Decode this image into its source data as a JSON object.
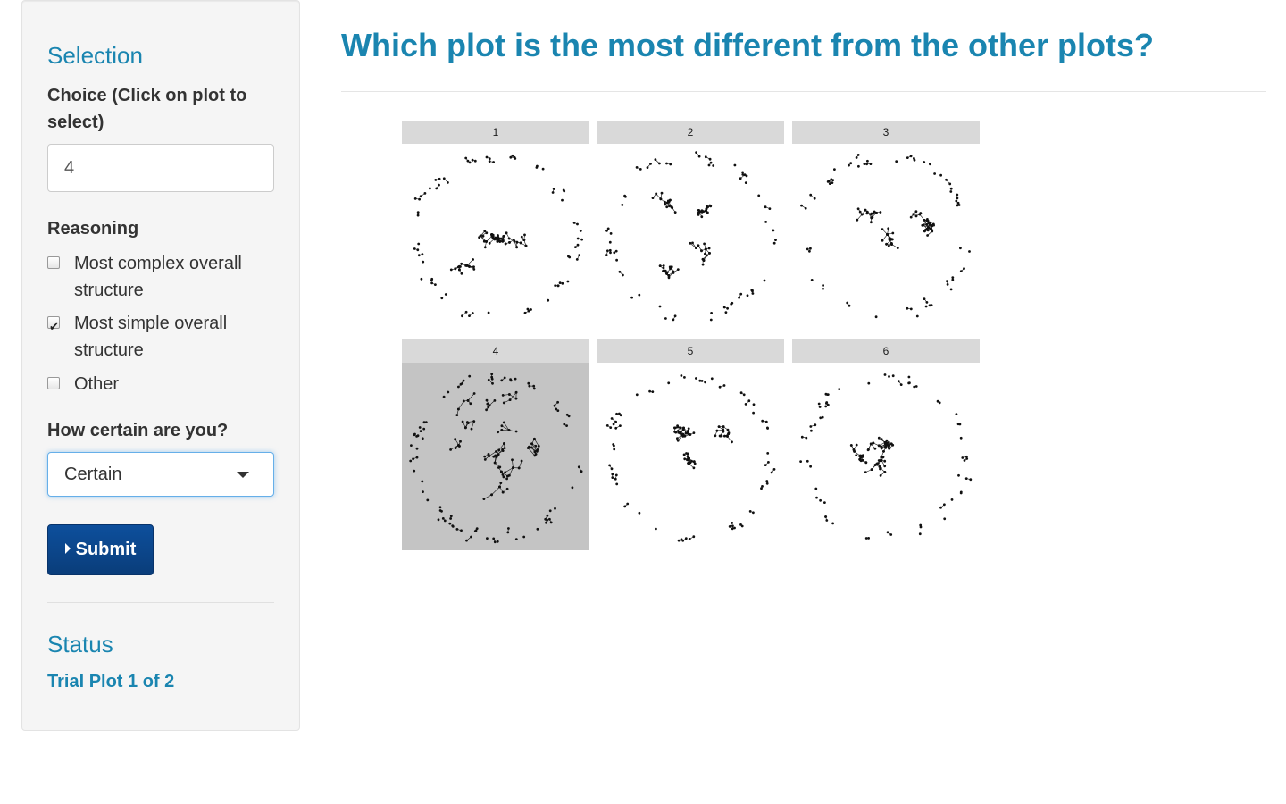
{
  "sidebar": {
    "selection_heading": "Selection",
    "choice_label": "Choice (Click on plot to select)",
    "choice_value": "4",
    "reasoning_label": "Reasoning",
    "reasons": [
      {
        "label": "Most complex overall structure",
        "checked": false
      },
      {
        "label": "Most simple overall structure",
        "checked": true
      },
      {
        "label": "Other",
        "checked": false
      }
    ],
    "certainty_label": "How certain are you?",
    "certainty_value": "Certain",
    "submit_label": "Submit",
    "status_heading": "Status",
    "status_text": "Trial Plot 1 of 2"
  },
  "main": {
    "title": "Which plot is the most different from the other plots?"
  },
  "lineup": {
    "panels": [
      {
        "label": "1",
        "selected": false
      },
      {
        "label": "2",
        "selected": false
      },
      {
        "label": "3",
        "selected": false
      },
      {
        "label": "4",
        "selected": true
      },
      {
        "label": "5",
        "selected": false
      },
      {
        "label": "6",
        "selected": false
      }
    ]
  },
  "colors": {
    "accent": "#1a85b0",
    "button": "#0d4f9c",
    "strip": "#d9d9d9",
    "selected_panel_bg": "#c4c4c4",
    "node": "#111111"
  }
}
